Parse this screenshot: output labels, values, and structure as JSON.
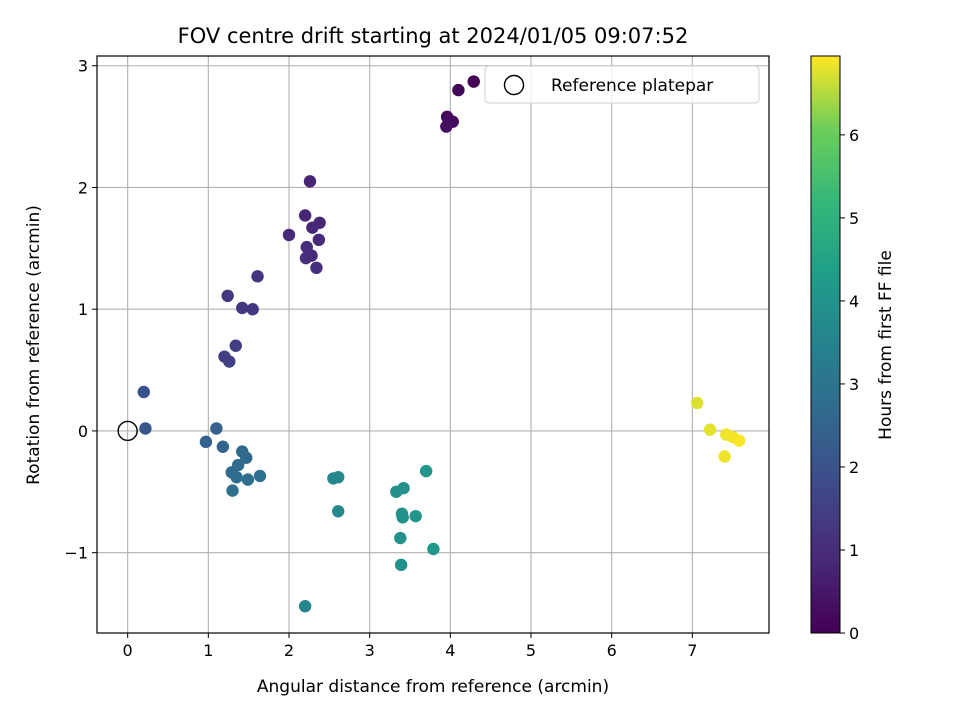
{
  "chart_data": {
    "type": "scatter",
    "title": "FOV centre drift starting at 2024/01/05 09:07:52",
    "xlabel": "Angular distance from reference (arcmin)",
    "ylabel": "Rotation from reference (arcmin)",
    "xlim": [
      -0.38,
      7.95
    ],
    "ylim": [
      -1.66,
      3.08
    ],
    "xticks": [
      0,
      1,
      2,
      3,
      4,
      5,
      6,
      7
    ],
    "yticks": [
      -1,
      0,
      1,
      2,
      3
    ],
    "xtick_labels": [
      "0",
      "1",
      "2",
      "3",
      "4",
      "5",
      "6",
      "7"
    ],
    "ytick_labels": [
      "−1",
      "0",
      "1",
      "2",
      "3"
    ],
    "grid": true,
    "legend": {
      "position": "top-right",
      "entries": [
        "Reference platepar"
      ]
    },
    "reference_point": {
      "name": "Reference platepar",
      "x": 0,
      "y": 0
    },
    "colorbar": {
      "label": "Hours from first FF file",
      "range": [
        0,
        6.95
      ],
      "ticks": [
        0,
        1,
        2,
        3,
        4,
        5,
        6
      ],
      "tick_labels": [
        "0",
        "1",
        "2",
        "3",
        "4",
        "5",
        "6"
      ],
      "colormap": "viridis"
    },
    "points": [
      {
        "x": 4.29,
        "y": 2.87,
        "c": 0.05
      },
      {
        "x": 4.1,
        "y": 2.8,
        "c": 0.1
      },
      {
        "x": 3.96,
        "y": 2.58,
        "c": 0.2
      },
      {
        "x": 4.03,
        "y": 2.54,
        "c": 0.25
      },
      {
        "x": 3.95,
        "y": 2.5,
        "c": 0.3
      },
      {
        "x": 2.26,
        "y": 2.05,
        "c": 0.8
      },
      {
        "x": 2.2,
        "y": 1.77,
        "c": 0.85
      },
      {
        "x": 2.38,
        "y": 1.71,
        "c": 0.85
      },
      {
        "x": 2.29,
        "y": 1.67,
        "c": 0.9
      },
      {
        "x": 2.0,
        "y": 1.61,
        "c": 0.95
      },
      {
        "x": 2.37,
        "y": 1.57,
        "c": 0.95
      },
      {
        "x": 2.22,
        "y": 1.51,
        "c": 1.0
      },
      {
        "x": 2.28,
        "y": 1.44,
        "c": 1.0
      },
      {
        "x": 2.21,
        "y": 1.42,
        "c": 1.05
      },
      {
        "x": 2.34,
        "y": 1.34,
        "c": 1.05
      },
      {
        "x": 1.61,
        "y": 1.27,
        "c": 1.2
      },
      {
        "x": 1.24,
        "y": 1.11,
        "c": 1.25
      },
      {
        "x": 1.42,
        "y": 1.01,
        "c": 1.3
      },
      {
        "x": 1.55,
        "y": 1.0,
        "c": 1.3
      },
      {
        "x": 1.34,
        "y": 0.7,
        "c": 1.45
      },
      {
        "x": 1.2,
        "y": 0.61,
        "c": 1.5
      },
      {
        "x": 1.26,
        "y": 0.57,
        "c": 1.5
      },
      {
        "x": 0.2,
        "y": 0.32,
        "c": 2.0
      },
      {
        "x": 0.22,
        "y": 0.02,
        "c": 2.1
      },
      {
        "x": 1.1,
        "y": 0.02,
        "c": 2.4
      },
      {
        "x": 0.97,
        "y": -0.09,
        "c": 2.45
      },
      {
        "x": 1.18,
        "y": -0.13,
        "c": 2.5
      },
      {
        "x": 1.42,
        "y": -0.17,
        "c": 2.6
      },
      {
        "x": 1.47,
        "y": -0.22,
        "c": 2.65
      },
      {
        "x": 1.37,
        "y": -0.28,
        "c": 2.7
      },
      {
        "x": 1.29,
        "y": -0.34,
        "c": 2.75
      },
      {
        "x": 1.35,
        "y": -0.38,
        "c": 2.8
      },
      {
        "x": 1.49,
        "y": -0.4,
        "c": 2.85
      },
      {
        "x": 1.64,
        "y": -0.37,
        "c": 2.9
      },
      {
        "x": 1.3,
        "y": -0.49,
        "c": 2.9
      },
      {
        "x": 2.55,
        "y": -0.39,
        "c": 3.6
      },
      {
        "x": 2.61,
        "y": -0.38,
        "c": 3.65
      },
      {
        "x": 2.61,
        "y": -0.66,
        "c": 3.7
      },
      {
        "x": 2.2,
        "y": -1.44,
        "c": 3.55
      },
      {
        "x": 3.7,
        "y": -0.33,
        "c": 4.1
      },
      {
        "x": 3.33,
        "y": -0.5,
        "c": 3.95
      },
      {
        "x": 3.42,
        "y": -0.47,
        "c": 3.95
      },
      {
        "x": 3.4,
        "y": -0.68,
        "c": 4.0
      },
      {
        "x": 3.41,
        "y": -0.71,
        "c": 4.0
      },
      {
        "x": 3.57,
        "y": -0.7,
        "c": 4.05
      },
      {
        "x": 3.38,
        "y": -0.88,
        "c": 3.95
      },
      {
        "x": 3.79,
        "y": -0.97,
        "c": 4.1
      },
      {
        "x": 3.39,
        "y": -1.1,
        "c": 3.95
      },
      {
        "x": 7.06,
        "y": 0.23,
        "c": 6.75
      },
      {
        "x": 7.22,
        "y": 0.01,
        "c": 6.8
      },
      {
        "x": 7.42,
        "y": -0.03,
        "c": 6.85
      },
      {
        "x": 7.5,
        "y": -0.05,
        "c": 6.88
      },
      {
        "x": 7.58,
        "y": -0.08,
        "c": 6.92
      },
      {
        "x": 7.4,
        "y": -0.21,
        "c": 6.85
      }
    ]
  }
}
